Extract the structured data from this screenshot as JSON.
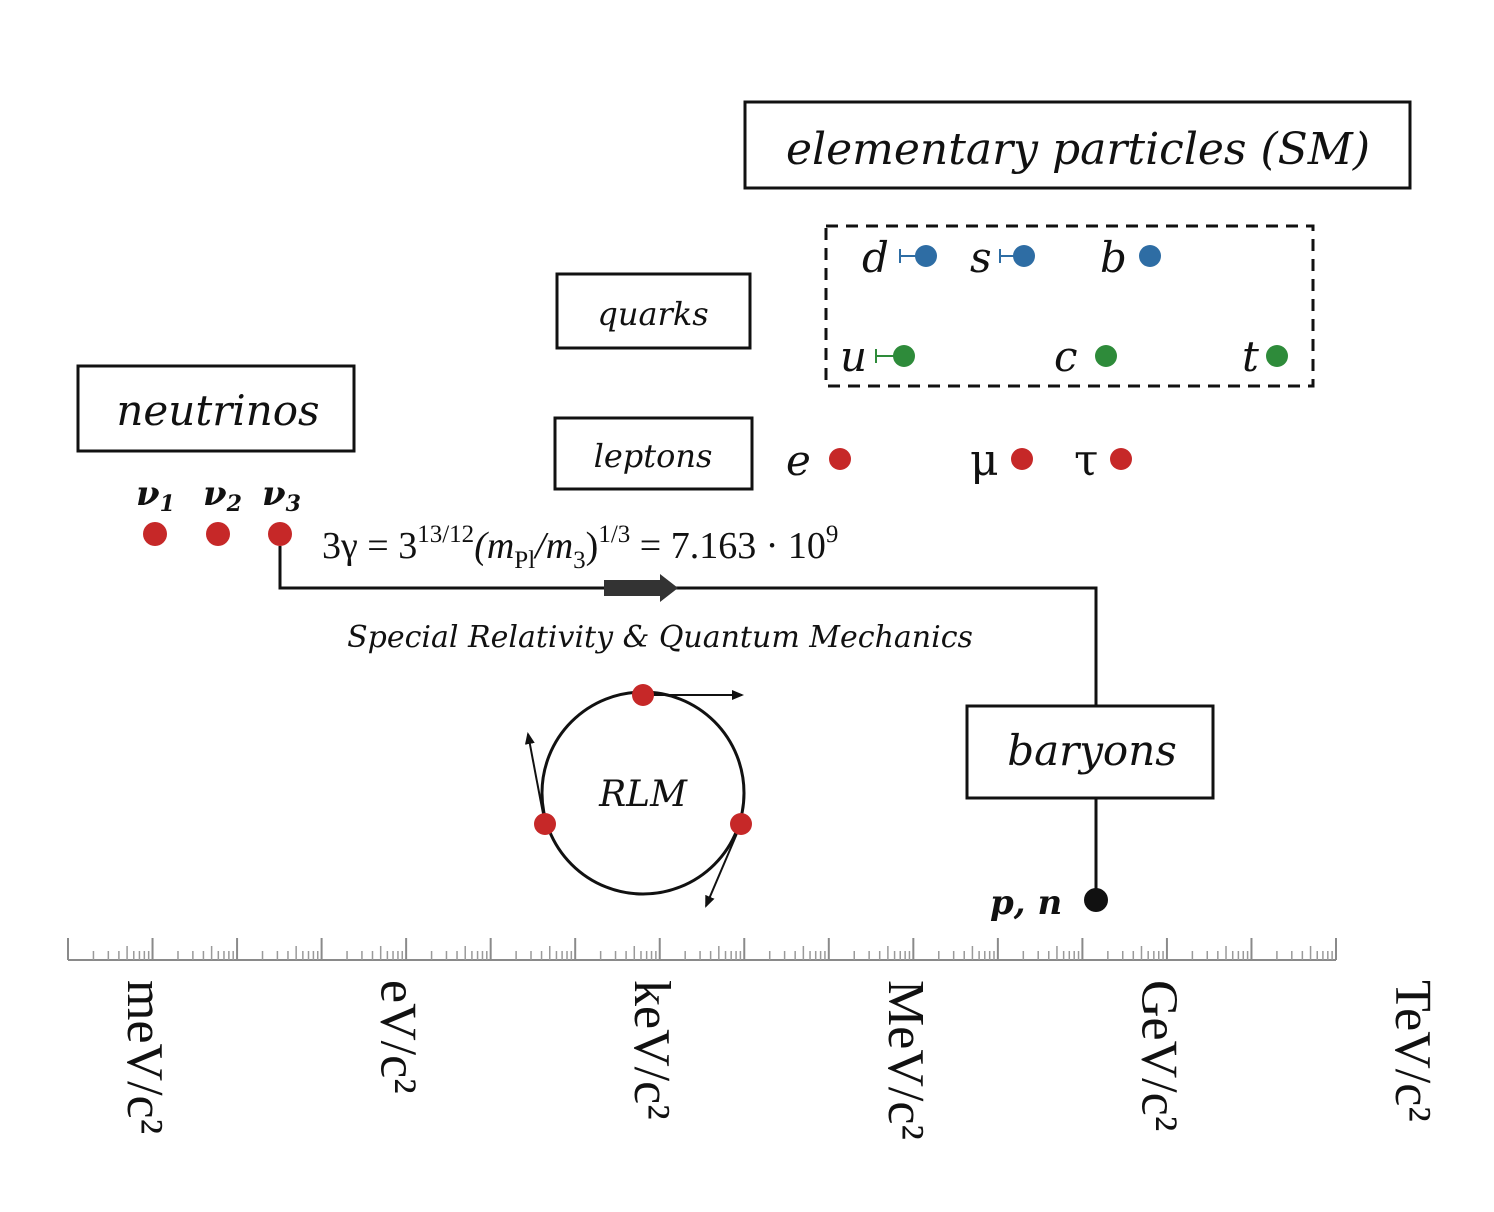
{
  "title": "elementary particles (SM)",
  "groups": {
    "quarks": "quarks",
    "leptons": "leptons",
    "neutrinos": "neutrinos",
    "baryons": "baryons"
  },
  "quarks_down": [
    {
      "label": "d",
      "color": "#2e6da4"
    },
    {
      "label": "s",
      "color": "#2e6da4"
    },
    {
      "label": "b",
      "color": "#2e6da4"
    }
  ],
  "quarks_up": [
    {
      "label": "u",
      "color": "#2e8b3a"
    },
    {
      "label": "c",
      "color": "#2e8b3a"
    },
    {
      "label": "t",
      "color": "#2e8b3a"
    }
  ],
  "leptons": [
    {
      "label": "e",
      "color": "#c62828"
    },
    {
      "label": "μ",
      "color": "#c62828"
    },
    {
      "label": "τ",
      "color": "#c62828"
    }
  ],
  "neutrinos": [
    {
      "label": "ν",
      "sub": "1",
      "color": "#c62828"
    },
    {
      "label": "ν",
      "sub": "2",
      "color": "#c62828"
    },
    {
      "label": "ν",
      "sub": "3",
      "color": "#c62828"
    }
  ],
  "formula": {
    "lhs": "3γ = 3",
    "exp1": "13/12",
    "mid1": "(m",
    "sub1": "Pl",
    "mid2": "/m",
    "sub2": "3",
    "mid3": ")",
    "exp2": "1/3",
    "rhs": " = 7.163 · 10",
    "exp3": "9"
  },
  "process_label": "Special Relativity & Quantum Mechanics",
  "rlm_label": "RLM",
  "nucleons_label": "p, n",
  "axis_units": [
    "meV/c²",
    "eV/c²",
    "keV/c²",
    "MeV/c²",
    "GeV/c²",
    "TeV/c²"
  ],
  "colors": {
    "neutrino_red": "#c62828",
    "down_quark_blue": "#2e6da4",
    "up_quark_green": "#2e8b3a",
    "baryon_black": "#111111"
  }
}
